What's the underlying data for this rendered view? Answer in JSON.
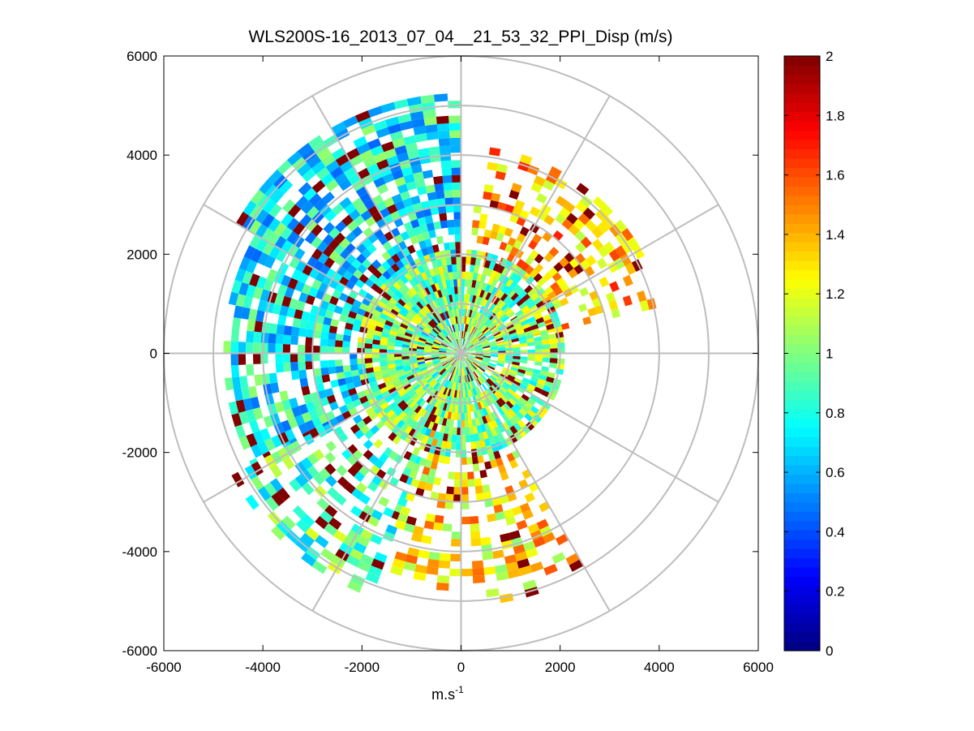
{
  "chart_data": {
    "type": "heatmap",
    "subtype": "polar-ppi",
    "title": "WLS200S-16_2013_07_04__21_53_32_PPI_Disp (m/s)",
    "xlabel": "m.s",
    "xlabel_superscript": "-1",
    "ylabel": "",
    "xlim": [
      -6000,
      6000
    ],
    "ylim": [
      -6000,
      6000
    ],
    "x_ticks": [
      -6000,
      -4000,
      -2000,
      0,
      2000,
      4000,
      6000
    ],
    "y_ticks": [
      6000,
      4000,
      2000,
      0,
      -2000,
      -4000,
      -6000
    ],
    "x_tick_labels": [
      "-6000",
      "-4000",
      "-2000",
      "0",
      "2000",
      "4000",
      "6000"
    ],
    "y_tick_labels": [
      "6000",
      "4000",
      "2000",
      "0",
      "-2000",
      "-4000",
      "-6000"
    ],
    "range_rings_m": [
      1000,
      2000,
      3000,
      4000,
      5000,
      6000
    ],
    "spoke_angles_deg": [
      0,
      30,
      60,
      90,
      120,
      150,
      180,
      210,
      240,
      270,
      300,
      330
    ],
    "grid": true,
    "colorbar": {
      "colormap": "jet",
      "clim": [
        0,
        2
      ],
      "ticks": [
        0,
        0.2,
        0.4,
        0.6,
        0.8,
        1,
        1.2,
        1.4,
        1.6,
        1.8,
        2
      ],
      "tick_labels": [
        "0",
        "0.2",
        "0.4",
        "0.6",
        "0.8",
        "1",
        "1.2",
        "1.4",
        "1.6",
        "1.8",
        "2"
      ],
      "location": "right"
    },
    "sectors_approx": [
      {
        "name": "north-west sector",
        "azimuth_start_deg": 300,
        "azimuth_end_deg": 360,
        "range_start_m": 300,
        "range_end_m": 5200,
        "typical_value": 0.75,
        "coverage": 0.8
      },
      {
        "name": "west sector",
        "azimuth_start_deg": 240,
        "azimuth_end_deg": 300,
        "range_start_m": 300,
        "range_end_m": 4800,
        "typical_value": 0.75,
        "coverage": 0.75
      },
      {
        "name": "south-west sector",
        "azimuth_start_deg": 200,
        "azimuth_end_deg": 240,
        "range_start_m": 300,
        "range_end_m": 5200,
        "typical_value": 0.9,
        "coverage": 0.55
      },
      {
        "name": "north-east sector",
        "azimuth_start_deg": 5,
        "azimuth_end_deg": 75,
        "range_start_m": 300,
        "range_end_m": 4200,
        "typical_value": 1.4,
        "coverage": 0.5
      },
      {
        "name": "south sector",
        "azimuth_start_deg": 150,
        "azimuth_end_deg": 200,
        "range_start_m": 300,
        "range_end_m": 5000,
        "typical_value": 1.3,
        "coverage": 0.45
      },
      {
        "name": "inner ring",
        "azimuth_start_deg": 0,
        "azimuth_end_deg": 360,
        "range_start_m": 0,
        "range_end_m": 2000,
        "typical_value": 1.0,
        "coverage": 0.85
      }
    ]
  }
}
